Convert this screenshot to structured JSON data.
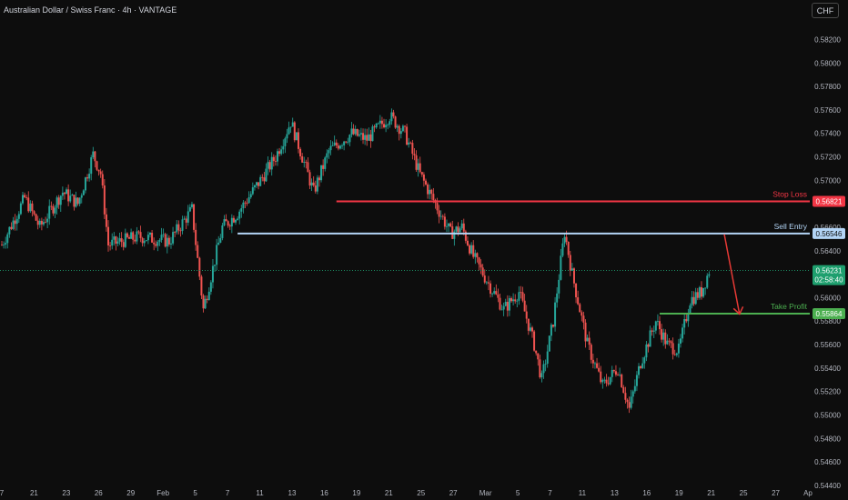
{
  "header": {
    "title": "Australian Dollar / Swiss Franc · 4h · VANTAGE",
    "currency_button": "CHF"
  },
  "colors": {
    "background": "#0d0d0d",
    "up": "#26a69a",
    "down": "#ef5350",
    "stop_loss": "#f23645",
    "sell_entry": "#b3d4f5",
    "take_profit": "#4caf50",
    "price_tag": "#1e9f6e",
    "arrow": "#e53935"
  },
  "chart_data": {
    "type": "candlestick",
    "symbol": "AUDCHF",
    "timeframe": "4h",
    "y_axis": {
      "min": 0.5443,
      "max": 0.5832,
      "ticks": [
        "0.58200",
        "0.58000",
        "0.57800",
        "0.57600",
        "0.57400",
        "0.57200",
        "0.57000",
        "0.56800",
        "0.56600",
        "0.56400",
        "0.56200",
        "0.56000",
        "0.55800",
        "0.55600",
        "0.55400",
        "0.55200",
        "0.55000",
        "0.54800",
        "0.54600",
        "0.54400"
      ]
    },
    "x_axis": {
      "ticks": [
        "7",
        "21",
        "23",
        "26",
        "29",
        "Feb",
        "5",
        "7",
        "11",
        "13",
        "16",
        "19",
        "21",
        "25",
        "27",
        "Mar",
        "5",
        "7",
        "11",
        "13",
        "16",
        "19",
        "21",
        "25",
        "27",
        "Ap"
      ]
    },
    "price_path": [
      {
        "t": 0,
        "p": 0.5645
      },
      {
        "t": 6,
        "p": 0.5685
      },
      {
        "t": 10,
        "p": 0.566
      },
      {
        "t": 16,
        "p": 0.569
      },
      {
        "t": 20,
        "p": 0.568
      },
      {
        "t": 24,
        "p": 0.5722
      },
      {
        "t": 26,
        "p": 0.5706
      },
      {
        "t": 28,
        "p": 0.5645
      },
      {
        "t": 36,
        "p": 0.5652
      },
      {
        "t": 44,
        "p": 0.5648
      },
      {
        "t": 50,
        "p": 0.5675
      },
      {
        "t": 53,
        "p": 0.559
      },
      {
        "t": 58,
        "p": 0.566
      },
      {
        "t": 62,
        "p": 0.5672
      },
      {
        "t": 68,
        "p": 0.57
      },
      {
        "t": 72,
        "p": 0.572
      },
      {
        "t": 76,
        "p": 0.575
      },
      {
        "t": 78,
        "p": 0.573
      },
      {
        "t": 82,
        "p": 0.569
      },
      {
        "t": 86,
        "p": 0.5725
      },
      {
        "t": 92,
        "p": 0.574
      },
      {
        "t": 96,
        "p": 0.5735
      },
      {
        "t": 102,
        "p": 0.5755
      },
      {
        "t": 106,
        "p": 0.574
      },
      {
        "t": 110,
        "p": 0.5705
      },
      {
        "t": 114,
        "p": 0.568
      },
      {
        "t": 118,
        "p": 0.5655
      },
      {
        "t": 121,
        "p": 0.566
      },
      {
        "t": 124,
        "p": 0.5635
      },
      {
        "t": 128,
        "p": 0.5612
      },
      {
        "t": 132,
        "p": 0.559
      },
      {
        "t": 136,
        "p": 0.5605
      },
      {
        "t": 140,
        "p": 0.556
      },
      {
        "t": 142,
        "p": 0.553
      },
      {
        "t": 145,
        "p": 0.558
      },
      {
        "t": 148,
        "p": 0.5656
      },
      {
        "t": 150,
        "p": 0.562
      },
      {
        "t": 154,
        "p": 0.556
      },
      {
        "t": 158,
        "p": 0.5525
      },
      {
        "t": 162,
        "p": 0.554
      },
      {
        "t": 165,
        "p": 0.5505
      },
      {
        "t": 168,
        "p": 0.5545
      },
      {
        "t": 172,
        "p": 0.558
      },
      {
        "t": 175,
        "p": 0.556
      },
      {
        "t": 178,
        "p": 0.5555
      },
      {
        "t": 181,
        "p": 0.5598
      },
      {
        "t": 184,
        "p": 0.5605
      },
      {
        "t": 186,
        "p": 0.5623
      }
    ],
    "levels": [
      {
        "key": "stop_loss",
        "label": "Stop Loss",
        "price_label": "0.56821",
        "value": 0.56821,
        "from_t": 88
      },
      {
        "key": "sell_entry",
        "label": "Sell Entry",
        "price_label": "0.56546",
        "value": 0.56546,
        "from_t": 62
      },
      {
        "key": "take_profit",
        "label": "Take Profit",
        "price_label": "0.55864",
        "value": 0.55864,
        "from_t": 173
      }
    ],
    "current_price": {
      "value": 0.56231,
      "label": "0.56231",
      "countdown": "02:58:40"
    },
    "arrow": {
      "from_t": 190,
      "from": 0.5654,
      "to_t": 194,
      "to": 0.5586
    }
  }
}
